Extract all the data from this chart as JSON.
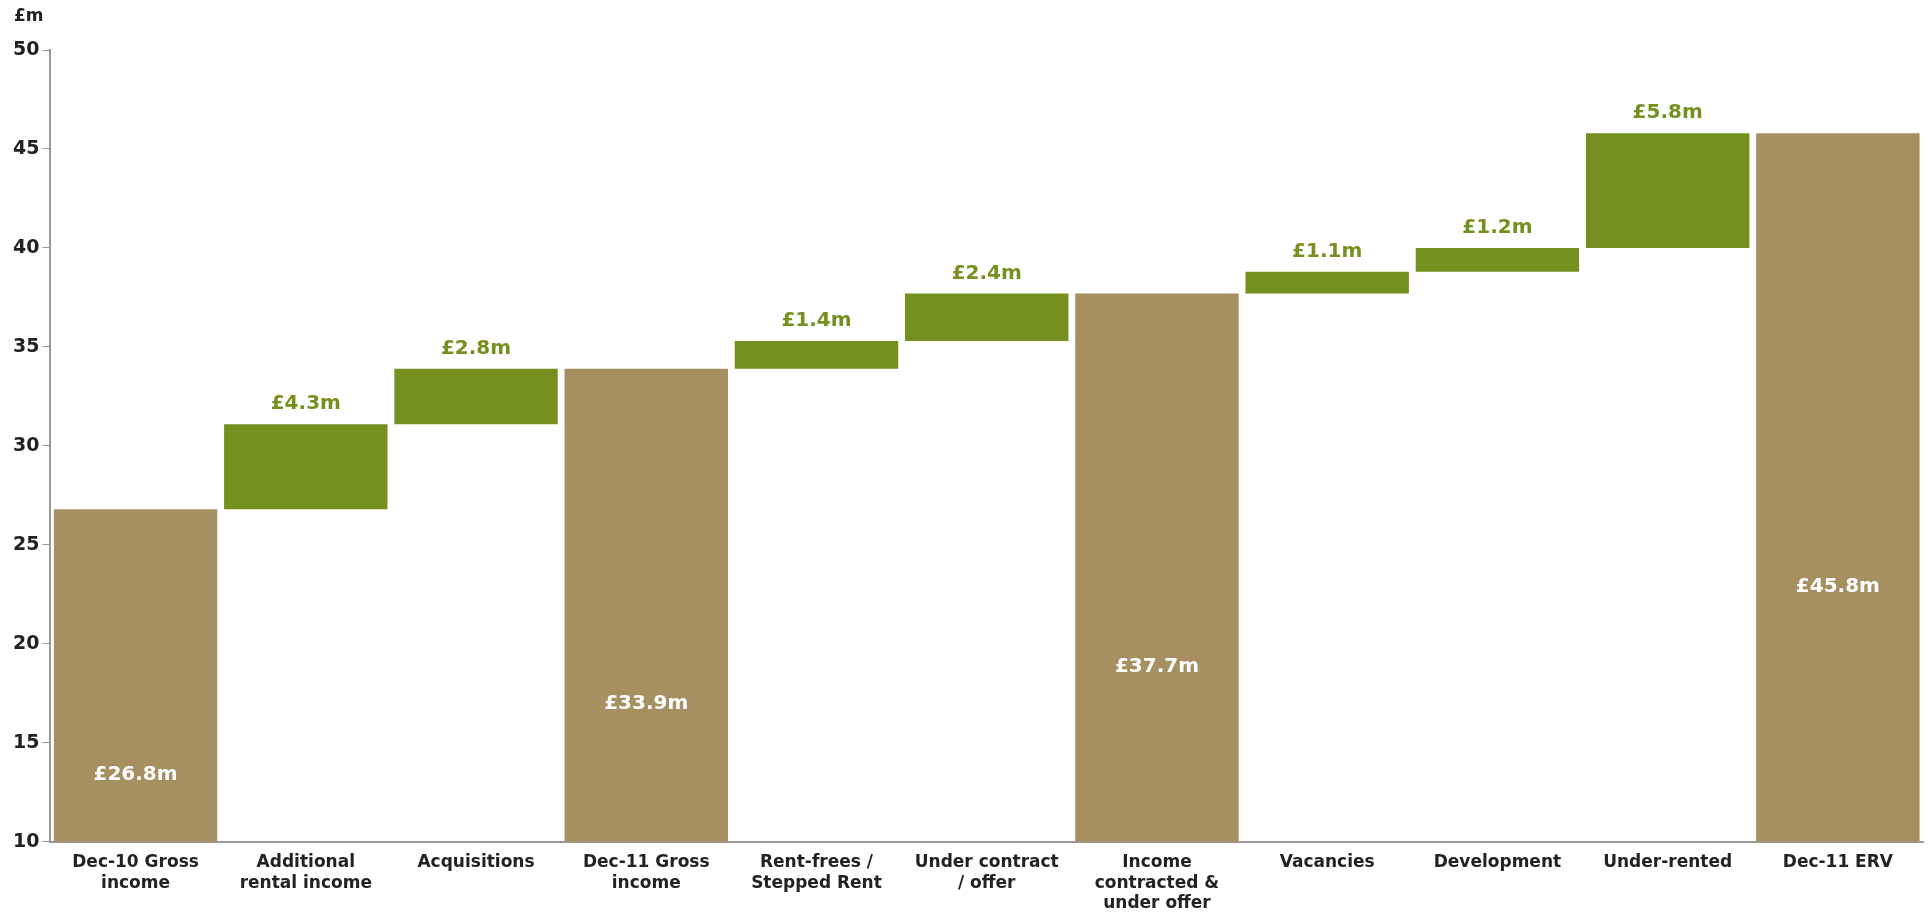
{
  "chart_data": {
    "type": "bar",
    "ylabel": "£m",
    "categories": [
      "Dec-10 Gross income",
      "Additional rental income",
      "Acquisitions",
      "Dec-11 Gross income",
      "Rent-frees / Stepped Rent",
      "Under contract / offer",
      "Income contracted & under offer",
      "Vacancies",
      "Development",
      "Under-rented",
      "Dec-11 ERV"
    ],
    "values": [
      26.8,
      4.3,
      2.8,
      33.9,
      1.4,
      2.4,
      37.7,
      1.1,
      1.2,
      5.8,
      45.8
    ],
    "base": [
      null,
      26.8,
      31.1,
      null,
      33.9,
      35.3,
      null,
      37.7,
      38.8,
      40.0,
      null
    ],
    "colors": [
      "#a68f60",
      "#76901f",
      "#76901f",
      "#a68f60",
      "#76901f",
      "#76901f",
      "#a68f60",
      "#76901f",
      "#76901f",
      "#76901f",
      "#a68f60"
    ],
    "value_labels": [
      "£26.8m",
      "£4.3m",
      "£2.8m",
      "£33.9m",
      "£1.4m",
      "£2.4m",
      "£37.7m",
      "£1.1m",
      "£1.2m",
      "£5.8m",
      "£45.8m"
    ],
    "ylim": [
      10,
      50
    ],
    "yticks": [
      10,
      15,
      20,
      25,
      30,
      35,
      40,
      45,
      50
    ],
    "grid": false,
    "legend": false
  }
}
